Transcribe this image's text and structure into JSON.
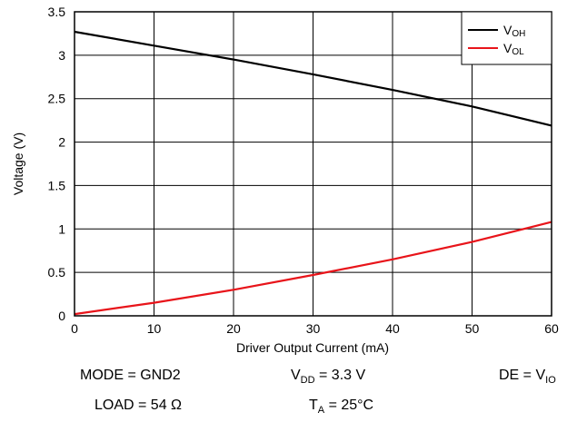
{
  "chart_data": {
    "type": "line",
    "xlabel": "Driver Output Current (mA)",
    "ylabel": "Voltage (V)",
    "xlim": [
      0,
      60
    ],
    "ylim": [
      0,
      3.5
    ],
    "x_ticks": [
      "0",
      "10",
      "20",
      "30",
      "40",
      "50",
      "60"
    ],
    "y_ticks": [
      "0",
      "0.5",
      "1",
      "1.5",
      "2",
      "2.5",
      "3",
      "3.5"
    ],
    "grid": true,
    "legend_position": "top-right",
    "series": [
      {
        "name": "VOH",
        "legend_main": "V",
        "legend_sub": "OH",
        "color": "#000000",
        "x": [
          0,
          10,
          20,
          30,
          40,
          50,
          60
        ],
        "y": [
          3.27,
          3.11,
          2.95,
          2.78,
          2.6,
          2.41,
          2.19
        ]
      },
      {
        "name": "VOL",
        "legend_main": "V",
        "legend_sub": "OL",
        "color": "#e8141a",
        "x": [
          0,
          10,
          20,
          30,
          40,
          50,
          60
        ],
        "y": [
          0.02,
          0.15,
          0.3,
          0.47,
          0.65,
          0.85,
          1.08
        ]
      }
    ]
  },
  "conditions": {
    "mode": "MODE = GND2",
    "vdd_prefix": "V",
    "vdd_sub": "DD",
    "vdd_value": " = 3.3 V",
    "de_prefix": "DE = V",
    "de_sub": "IO",
    "load": "LOAD = 54 Ω",
    "ta_prefix": "T",
    "ta_sub": "A",
    "ta_value": " = 25°C"
  }
}
